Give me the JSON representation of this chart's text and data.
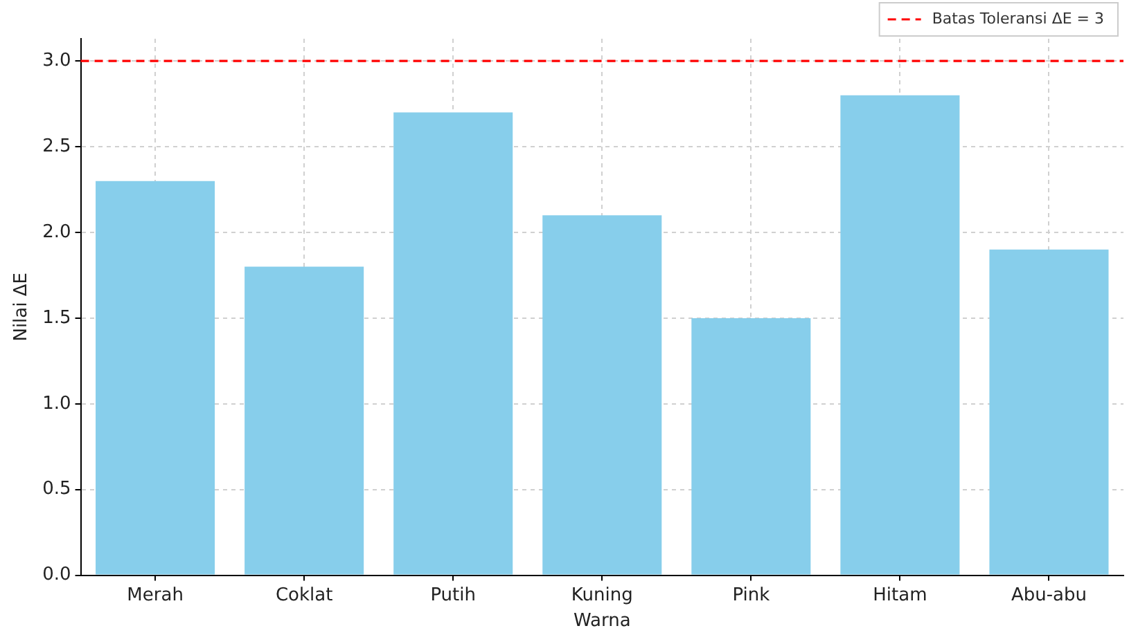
{
  "chart_data": {
    "type": "bar",
    "xlabel": "Warna",
    "ylabel": "Nilai ΔE",
    "categories": [
      "Merah",
      "Coklat",
      "Putih",
      "Kuning",
      "Pink",
      "Hitam",
      "Abu-abu"
    ],
    "values": [
      2.3,
      1.8,
      2.7,
      2.1,
      1.5,
      2.8,
      1.9
    ],
    "color": "#87ceeb",
    "ylim": [
      0,
      3.13
    ],
    "yticks": [
      {
        "value": 0,
        "label": "0.0"
      },
      {
        "value": 0.5,
        "label": "0.5"
      },
      {
        "value": 1,
        "label": "1.0"
      },
      {
        "value": 1.5,
        "label": "1.5"
      },
      {
        "value": 2,
        "label": "2.0"
      },
      {
        "value": 2.5,
        "label": "2.5"
      },
      {
        "value": 3,
        "label": "3.0"
      }
    ],
    "ref_lines": [
      {
        "axis": "y",
        "value": 3,
        "label": "Batas Toleransi ΔE = 3",
        "color": "#ff0000",
        "line_style": "dashed"
      }
    ],
    "grid": true,
    "legend": "top right"
  }
}
